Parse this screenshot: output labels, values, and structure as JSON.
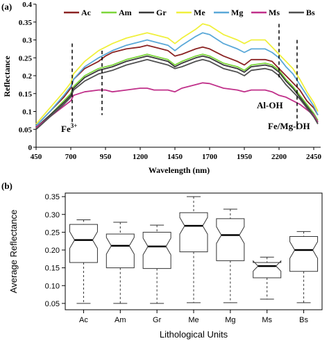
{
  "chart_data": [
    {
      "panel_label": "(a)",
      "type": "line",
      "xlabel": "Wavelength (nm)",
      "ylabel": "Reflectance",
      "xlim": [
        450,
        2500
      ],
      "ylim": [
        0,
        0.4
      ],
      "xticks": [
        450,
        700,
        950,
        1200,
        1450,
        1700,
        1950,
        2200,
        2450
      ],
      "yticks": [
        0,
        0.05,
        0.1,
        0.15,
        0.2,
        0.25,
        0.3,
        0.35,
        0.4
      ],
      "legend_position": "top",
      "x": [
        450,
        550,
        650,
        700,
        720,
        800,
        900,
        950,
        1000,
        1100,
        1200,
        1250,
        1300,
        1400,
        1450,
        1500,
        1600,
        1650,
        1700,
        1800,
        1900,
        1950,
        2000,
        2100,
        2150,
        2200,
        2250,
        2300,
        2350,
        2400,
        2450,
        2480
      ],
      "series": [
        {
          "name": "Ac",
          "color": "#8b2323",
          "values": [
            0.06,
            0.1,
            0.14,
            0.165,
            0.19,
            0.22,
            0.24,
            0.255,
            0.265,
            0.275,
            0.28,
            0.285,
            0.28,
            0.27,
            0.255,
            0.26,
            0.275,
            0.28,
            0.275,
            0.255,
            0.24,
            0.23,
            0.245,
            0.245,
            0.24,
            0.22,
            0.2,
            0.18,
            0.16,
            0.13,
            0.11,
            0.09
          ]
        },
        {
          "name": "Am",
          "color": "#7cd63a",
          "values": [
            0.055,
            0.09,
            0.13,
            0.15,
            0.17,
            0.2,
            0.22,
            0.225,
            0.23,
            0.245,
            0.255,
            0.26,
            0.255,
            0.245,
            0.23,
            0.24,
            0.255,
            0.26,
            0.255,
            0.235,
            0.225,
            0.215,
            0.23,
            0.235,
            0.23,
            0.215,
            0.19,
            0.17,
            0.145,
            0.12,
            0.095,
            0.075
          ]
        },
        {
          "name": "Gr",
          "color": "#3a3a3a",
          "values": [
            0.055,
            0.09,
            0.125,
            0.145,
            0.165,
            0.195,
            0.215,
            0.22,
            0.225,
            0.24,
            0.25,
            0.255,
            0.25,
            0.24,
            0.225,
            0.235,
            0.25,
            0.255,
            0.25,
            0.23,
            0.22,
            0.21,
            0.225,
            0.23,
            0.225,
            0.21,
            0.185,
            0.165,
            0.14,
            0.115,
            0.09,
            0.07
          ]
        },
        {
          "name": "Me",
          "color": "#f0f03c",
          "values": [
            0.065,
            0.11,
            0.155,
            0.18,
            0.205,
            0.24,
            0.27,
            0.28,
            0.29,
            0.305,
            0.315,
            0.32,
            0.315,
            0.305,
            0.29,
            0.305,
            0.33,
            0.345,
            0.34,
            0.315,
            0.3,
            0.29,
            0.3,
            0.3,
            0.28,
            0.26,
            0.24,
            0.22,
            0.19,
            0.155,
            0.125,
            0.1
          ]
        },
        {
          "name": "Mg",
          "color": "#5aa8d8",
          "values": [
            0.06,
            0.1,
            0.145,
            0.17,
            0.19,
            0.225,
            0.25,
            0.26,
            0.27,
            0.285,
            0.295,
            0.3,
            0.295,
            0.285,
            0.27,
            0.285,
            0.31,
            0.32,
            0.315,
            0.29,
            0.275,
            0.265,
            0.275,
            0.275,
            0.265,
            0.25,
            0.225,
            0.205,
            0.175,
            0.145,
            0.115,
            0.09
          ]
        },
        {
          "name": "Ms",
          "color": "#c0308a",
          "values": [
            0.055,
            0.085,
            0.115,
            0.13,
            0.145,
            0.155,
            0.16,
            0.16,
            0.155,
            0.16,
            0.165,
            0.165,
            0.16,
            0.16,
            0.155,
            0.165,
            0.175,
            0.18,
            0.178,
            0.165,
            0.16,
            0.155,
            0.16,
            0.16,
            0.155,
            0.145,
            0.14,
            0.13,
            0.12,
            0.105,
            0.09,
            0.07
          ]
        },
        {
          "name": "Bs",
          "color": "#505050",
          "values": [
            0.05,
            0.085,
            0.12,
            0.14,
            0.16,
            0.185,
            0.205,
            0.21,
            0.215,
            0.23,
            0.24,
            0.245,
            0.24,
            0.23,
            0.22,
            0.225,
            0.24,
            0.245,
            0.24,
            0.22,
            0.21,
            0.2,
            0.215,
            0.22,
            0.215,
            0.2,
            0.175,
            0.155,
            0.135,
            0.11,
            0.085,
            0.065
          ]
        }
      ],
      "annotations": [
        {
          "text": "Fe",
          "sup": "3+",
          "at_x": 700
        },
        {
          "text": "Al-OH",
          "at_x": 2200
        },
        {
          "text": "Fe/Mg-OH",
          "at_x": 2330
        }
      ],
      "dashed_lines_x": [
        710,
        925,
        2200,
        2330
      ]
    },
    {
      "panel_label": "(b)",
      "type": "box",
      "xlabel": "Lithological Units",
      "ylabel": "Average Reflectance",
      "ylim": [
        0.04,
        0.36
      ],
      "yticks": [
        0.05,
        0.1,
        0.15,
        0.2,
        0.25,
        0.3,
        0.35
      ],
      "categories": [
        "Ac",
        "Am",
        "Gr",
        "Me",
        "Mg",
        "Ms",
        "Bs"
      ],
      "boxes": [
        {
          "min": 0.05,
          "q1": 0.165,
          "median": 0.228,
          "q3": 0.272,
          "max": 0.285
        },
        {
          "min": 0.05,
          "q1": 0.15,
          "median": 0.212,
          "q3": 0.245,
          "max": 0.278
        },
        {
          "min": 0.05,
          "q1": 0.148,
          "median": 0.21,
          "q3": 0.25,
          "max": 0.27
        },
        {
          "min": 0.052,
          "q1": 0.195,
          "median": 0.268,
          "q3": 0.305,
          "max": 0.35
        },
        {
          "min": 0.052,
          "q1": 0.17,
          "median": 0.242,
          "q3": 0.288,
          "max": 0.315
        },
        {
          "min": 0.062,
          "q1": 0.122,
          "median": 0.155,
          "q3": 0.165,
          "max": 0.18
        },
        {
          "min": 0.052,
          "q1": 0.14,
          "median": 0.2,
          "q3": 0.238,
          "max": 0.252
        }
      ]
    }
  ]
}
